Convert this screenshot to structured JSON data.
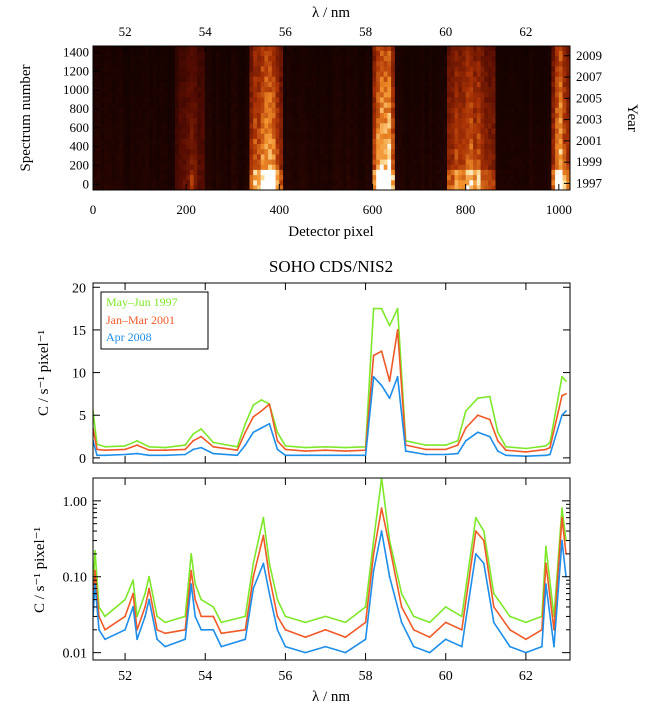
{
  "top_panel": {
    "top_axis_label": "λ / nm",
    "top_ticks": [
      "52",
      "54",
      "56",
      "58",
      "60",
      "62"
    ],
    "left_axis_label": "Spectrum number",
    "left_ticks": [
      "0",
      "200",
      "400",
      "600",
      "800",
      "1000",
      "1200",
      "1400"
    ],
    "bottom_axis_label": "Detector pixel",
    "bottom_ticks": [
      "0",
      "200",
      "400",
      "600",
      "800",
      "1000"
    ],
    "right_axis_label": "Year",
    "right_ticks": [
      "1997",
      "1999",
      "2001",
      "2003",
      "2005",
      "2007",
      "2009"
    ]
  },
  "title": "SOHO CDS/NIS2",
  "linear_panel": {
    "y_axis_label": "C / s⁻¹ pixel⁻¹",
    "y_ticks": [
      "0",
      "5",
      "10",
      "15",
      "20"
    ]
  },
  "log_panel": {
    "y_axis_label": "C / s⁻¹ pixel⁻¹",
    "y_ticks": [
      "0.01",
      "0.10",
      "1.00"
    ],
    "x_axis_label": "λ / nm",
    "x_ticks": [
      "52",
      "54",
      "56",
      "58",
      "60",
      "62"
    ]
  },
  "legend": [
    {
      "label": "May–Jun 1997",
      "color": "#7ee82a"
    },
    {
      "label": "Jan–Mar 2001",
      "color": "#f05a28"
    },
    {
      "label": "Apr 2008",
      "color": "#1e8ee8"
    }
  ],
  "chart_data": [
    {
      "type": "heatmap",
      "title": "",
      "xlabel": "Detector pixel",
      "ylabel": "Spectrum number",
      "x2label": "λ / nm",
      "y2label": "Year",
      "xlim": [
        0,
        1024
      ],
      "ylim": [
        -60,
        1470
      ],
      "colormap": "black-red-orange-white",
      "bright_bands_pixel": [
        {
          "from": 180,
          "to": 240,
          "intensity": 0.35
        },
        {
          "from": 335,
          "to": 405,
          "intensity": 0.8
        },
        {
          "from": 600,
          "to": 650,
          "intensity": 1.0
        },
        {
          "from": 760,
          "to": 860,
          "intensity": 0.65
        },
        {
          "from": 985,
          "to": 1020,
          "intensity": 0.85
        }
      ]
    },
    {
      "type": "line",
      "title": "SOHO CDS/NIS2",
      "xlabel": "λ / nm",
      "ylabel": "C / s⁻¹ pixel⁻¹",
      "xlim": [
        51.2,
        63.1
      ],
      "ylim": [
        -0.6,
        20.5
      ],
      "x": [
        51.2,
        51.3,
        51.5,
        52.0,
        52.3,
        52.6,
        53.0,
        53.5,
        53.7,
        53.9,
        54.2,
        54.8,
        55.0,
        55.2,
        55.4,
        55.6,
        55.8,
        56.0,
        56.5,
        57.0,
        57.5,
        58.0,
        58.2,
        58.4,
        58.6,
        58.8,
        59.0,
        59.5,
        60.0,
        60.3,
        60.5,
        60.8,
        61.1,
        61.3,
        61.5,
        62.0,
        62.5,
        62.6,
        62.9,
        63.0
      ],
      "series": [
        {
          "name": "May–Jun 1997",
          "color": "#7ee82a",
          "values": [
            5.5,
            1.6,
            1.3,
            1.4,
            2.0,
            1.3,
            1.2,
            1.5,
            2.8,
            3.4,
            1.8,
            1.3,
            4.0,
            6.2,
            6.8,
            6.3,
            3.0,
            1.4,
            1.2,
            1.3,
            1.2,
            1.3,
            17.5,
            17.5,
            15.5,
            17.5,
            2.0,
            1.5,
            1.5,
            2.0,
            5.5,
            7.0,
            7.2,
            3.0,
            1.3,
            1.1,
            1.4,
            1.8,
            9.5,
            9.0
          ]
        },
        {
          "name": "Jan–Mar 2001",
          "color": "#f05a28",
          "values": [
            3.5,
            1.0,
            0.9,
            1.0,
            1.5,
            0.9,
            0.9,
            1.0,
            2.0,
            2.5,
            1.3,
            0.9,
            3.0,
            4.8,
            5.5,
            6.3,
            2.0,
            1.0,
            0.8,
            0.9,
            0.8,
            0.9,
            12.0,
            12.5,
            9.0,
            15.0,
            1.5,
            1.0,
            1.0,
            1.5,
            3.5,
            5.0,
            4.5,
            2.0,
            0.9,
            0.7,
            1.0,
            1.2,
            7.3,
            7.5
          ]
        },
        {
          "name": "Apr 2008",
          "color": "#1e8ee8",
          "values": [
            2.0,
            0.3,
            0.3,
            0.4,
            0.5,
            0.3,
            0.3,
            0.4,
            1.0,
            1.2,
            0.5,
            0.3,
            1.5,
            3.0,
            3.5,
            4.0,
            1.0,
            0.3,
            0.3,
            0.3,
            0.3,
            0.3,
            9.5,
            8.5,
            7.0,
            9.5,
            0.8,
            0.4,
            0.4,
            0.5,
            2.0,
            3.0,
            2.5,
            0.8,
            0.3,
            0.2,
            0.3,
            0.4,
            5.0,
            5.5
          ]
        }
      ]
    },
    {
      "type": "line",
      "title": "",
      "xlabel": "λ / nm",
      "ylabel": "C / s⁻¹ pixel⁻¹",
      "yscale": "log",
      "xlim": [
        51.2,
        63.1
      ],
      "ylim": [
        0.008,
        2.0
      ],
      "x": [
        51.2,
        51.25,
        51.35,
        51.5,
        52.0,
        52.2,
        52.3,
        52.5,
        52.6,
        52.8,
        53.0,
        53.5,
        53.65,
        53.75,
        53.9,
        54.2,
        54.4,
        55.0,
        55.2,
        55.45,
        55.6,
        55.8,
        56.0,
        56.5,
        57.0,
        57.5,
        58.0,
        58.2,
        58.4,
        58.6,
        58.9,
        59.2,
        59.6,
        60.0,
        60.4,
        60.75,
        60.95,
        61.2,
        61.6,
        62.0,
        62.4,
        62.5,
        62.7,
        62.9,
        63.0
      ],
      "series": [
        {
          "name": "May–Jun 1997",
          "color": "#7ee82a",
          "values": [
            0.06,
            0.22,
            0.04,
            0.03,
            0.05,
            0.09,
            0.03,
            0.06,
            0.1,
            0.03,
            0.025,
            0.03,
            0.2,
            0.08,
            0.05,
            0.04,
            0.025,
            0.03,
            0.15,
            0.6,
            0.15,
            0.05,
            0.03,
            0.025,
            0.03,
            0.025,
            0.04,
            0.3,
            2.0,
            0.3,
            0.06,
            0.03,
            0.025,
            0.04,
            0.03,
            0.6,
            0.4,
            0.06,
            0.03,
            0.025,
            0.03,
            0.25,
            0.03,
            0.8,
            0.3
          ]
        },
        {
          "name": "Jan–Mar 2001",
          "color": "#f05a28",
          "values": [
            0.04,
            0.12,
            0.03,
            0.02,
            0.03,
            0.06,
            0.02,
            0.04,
            0.07,
            0.02,
            0.018,
            0.02,
            0.12,
            0.05,
            0.03,
            0.03,
            0.018,
            0.02,
            0.1,
            0.35,
            0.1,
            0.03,
            0.02,
            0.016,
            0.02,
            0.016,
            0.025,
            0.2,
            0.8,
            0.25,
            0.04,
            0.02,
            0.016,
            0.025,
            0.02,
            0.4,
            0.3,
            0.04,
            0.02,
            0.015,
            0.02,
            0.15,
            0.02,
            0.6,
            0.2
          ]
        },
        {
          "name": "Apr 2008",
          "color": "#1e8ee8",
          "values": [
            0.03,
            0.08,
            0.02,
            0.015,
            0.02,
            0.04,
            0.015,
            0.03,
            0.05,
            0.015,
            0.012,
            0.015,
            0.08,
            0.03,
            0.02,
            0.02,
            0.012,
            0.015,
            0.07,
            0.15,
            0.06,
            0.02,
            0.012,
            0.01,
            0.012,
            0.01,
            0.015,
            0.12,
            0.4,
            0.1,
            0.025,
            0.012,
            0.01,
            0.015,
            0.012,
            0.2,
            0.15,
            0.025,
            0.012,
            0.01,
            0.012,
            0.08,
            0.012,
            0.3,
            0.1
          ]
        }
      ]
    }
  ]
}
